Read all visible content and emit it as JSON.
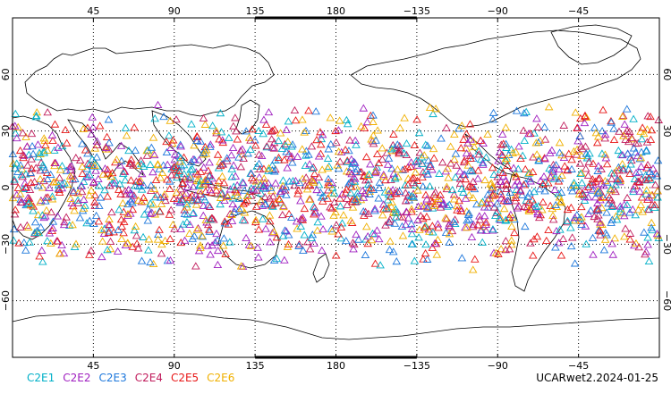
{
  "map": {
    "projection": "equirectangular",
    "lon_center": 180,
    "lat_range": [
      -90,
      90
    ],
    "lon_tick_labels": [
      "45",
      "90",
      "135",
      "180",
      "−135",
      "−90",
      "−45"
    ],
    "lat_tick_labels": [
      "60",
      "30",
      "0",
      "−30",
      "−60"
    ],
    "lon_ticks_deg": [
      45,
      90,
      135,
      180,
      225,
      270,
      315
    ],
    "lat_ticks_deg": [
      60,
      30,
      0,
      -30,
      -60
    ],
    "grid": "dotted",
    "marker": "open-triangle",
    "observation_band_lat": [
      -45,
      45
    ]
  },
  "legend": {
    "series": [
      {
        "name": "C2E1",
        "color": "#00b0c8"
      },
      {
        "name": "C2E2",
        "color": "#a020c0"
      },
      {
        "name": "C2E3",
        "color": "#1e78dc"
      },
      {
        "name": "C2E4",
        "color": "#c01c5c"
      },
      {
        "name": "C2E5",
        "color": "#e81818"
      },
      {
        "name": "C2E6",
        "color": "#f0b000"
      }
    ]
  },
  "caption": "UCARwet2.2024-01-25",
  "colors": {
    "coastline": "#000000",
    "grid": "#000000",
    "background": "#ffffff"
  }
}
